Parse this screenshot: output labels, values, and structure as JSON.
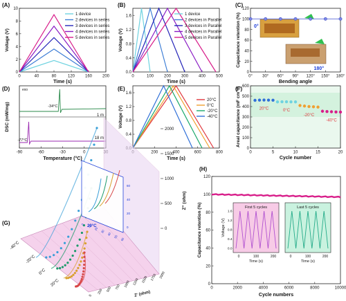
{
  "colors": {
    "c1": "#6fd3e0",
    "c2": "#3f7fd6",
    "c3": "#2424b8",
    "c4": "#8a1cc4",
    "c5": "#d81e8a",
    "t20": "#e0353b",
    "t0": "#f0a030",
    "tm20": "#1aa96a",
    "tm40": "#3070d8",
    "pinkArea": "#f7cbe6",
    "greenArea": "#c9f2df",
    "purple": "#b050d0",
    "teal": "#22aa88",
    "dscGreen": "#2a8a4a",
    "dscPurple": "#9a2ab0"
  },
  "chart_data": [
    {
      "panel": "(A)",
      "type": "line",
      "xlabel": "Time (s)",
      "ylabel": "Voltage (V)",
      "xlim": [
        0,
        200
      ],
      "ylim": [
        0,
        10
      ],
      "xticks": [
        "0",
        "40",
        "80",
        "120",
        "160",
        "200"
      ],
      "yticks": [
        "0",
        "2",
        "4",
        "6",
        "8",
        "10"
      ],
      "series": [
        {
          "name": "1 device",
          "color": "c1",
          "points": [
            [
              0,
              0
            ],
            [
              80,
              1.8
            ],
            [
              160,
              0
            ]
          ]
        },
        {
          "name": "2 devices in series",
          "color": "c2",
          "points": [
            [
              0,
              0
            ],
            [
              80,
              3.6
            ],
            [
              160,
              0
            ]
          ]
        },
        {
          "name": "3 devices in series",
          "color": "c3",
          "points": [
            [
              0,
              0
            ],
            [
              80,
              5.4
            ],
            [
              160,
              0
            ]
          ]
        },
        {
          "name": "4 devices in series",
          "color": "c4",
          "points": [
            [
              0,
              0
            ],
            [
              80,
              7.2
            ],
            [
              160,
              0
            ]
          ]
        },
        {
          "name": "5 devices in series",
          "color": "c5",
          "points": [
            [
              0,
              0
            ],
            [
              80,
              9.0
            ],
            [
              160,
              0
            ]
          ]
        }
      ]
    },
    {
      "panel": "(B)",
      "type": "line",
      "xlabel": "Time (s)",
      "ylabel": "Voltage (V)",
      "xlim": [
        0,
        500
      ],
      "ylim": [
        0,
        1.8
      ],
      "xticks": [
        "0",
        "100",
        "200",
        "300",
        "400",
        "500"
      ],
      "yticks": [
        "0.0",
        "0.4",
        "0.8",
        "1.2",
        "1.6"
      ],
      "series": [
        {
          "name": "1 device",
          "color": "c1",
          "points": [
            [
              0,
              0
            ],
            [
              50,
              1.8
            ],
            [
              100,
              0
            ]
          ]
        },
        {
          "name": "2 devices in Parallel",
          "color": "c2",
          "points": [
            [
              0,
              0
            ],
            [
              100,
              1.8
            ],
            [
              200,
              0
            ]
          ]
        },
        {
          "name": "3 devices in Parallel",
          "color": "c3",
          "points": [
            [
              0,
              0
            ],
            [
              150,
              1.8
            ],
            [
              300,
              0
            ]
          ]
        },
        {
          "name": "4 devices in Parallel",
          "color": "c4",
          "points": [
            [
              0,
              0
            ],
            [
              200,
              1.8
            ],
            [
              400,
              0
            ]
          ]
        },
        {
          "name": "5 devices in Parallel",
          "color": "c5",
          "points": [
            [
              0,
              0
            ],
            [
              250,
              1.8
            ],
            [
              480,
              0
            ]
          ]
        }
      ]
    },
    {
      "panel": "(C)",
      "type": "scatter",
      "xlabel": "Bending angle",
      "ylabel": "Capacitance retention (%)",
      "ylim": [
        0,
        120
      ],
      "categories": [
        "0°",
        "30°",
        "60°",
        "90°",
        "120°",
        "150°",
        "180°"
      ],
      "values": [
        100,
        100,
        100,
        100,
        100,
        100,
        100
      ],
      "yticks": [
        "0",
        "20",
        "40",
        "60",
        "80",
        "100",
        "120"
      ],
      "annotations": [
        "0°",
        "180°"
      ]
    },
    {
      "panel": "(D)",
      "type": "line",
      "xlabel": "Temperature (°C)",
      "ylabel": "DSC (mW/mg)",
      "xlim": [
        -90,
        30
      ],
      "xticks": [
        "-90",
        "-60",
        "-30",
        "0",
        "30"
      ],
      "corner_label": "exo",
      "series": [
        {
          "name": "1 m",
          "color": "dscGreen",
          "peak_x": -34,
          "peak_label": "-34°C"
        },
        {
          "name": "18 m",
          "color": "dscPurple",
          "peak_x": -77,
          "peak_label": "-77°C"
        }
      ]
    },
    {
      "panel": "(E)",
      "type": "line",
      "xlabel": "Time (s)",
      "ylabel": "Voltage (V)",
      "xlim": [
        0,
        900
      ],
      "ylim": [
        0,
        1.8
      ],
      "xticks": [
        "0",
        "200",
        "400",
        "600",
        "800"
      ],
      "yticks": [
        "0.0",
        "0.4",
        "0.8",
        "1.2",
        "1.6"
      ],
      "series": [
        {
          "name": "20°C",
          "color": "t20",
          "points": [
            [
              0,
              0
            ],
            [
              450,
              1.8
            ],
            [
              840,
              0
            ]
          ]
        },
        {
          "name": "0°C",
          "color": "t0",
          "points": [
            [
              0,
              0
            ],
            [
              420,
              1.8
            ],
            [
              800,
              0
            ]
          ]
        },
        {
          "name": "-20°C",
          "color": "tm20",
          "points": [
            [
              0,
              0
            ],
            [
              380,
              1.8
            ],
            [
              720,
              0
            ]
          ]
        },
        {
          "name": "-40°C",
          "color": "tm40",
          "points": [
            [
              0,
              0
            ],
            [
              320,
              1.8
            ],
            [
              620,
              0
            ]
          ]
        }
      ]
    },
    {
      "panel": "(F)",
      "type": "scatter",
      "xlabel": "Cycle number",
      "ylabel": "Areal capacitance (mF cm⁻²)",
      "xlim": [
        0,
        20
      ],
      "ylim": [
        0,
        600
      ],
      "xticks": [
        "0",
        "5",
        "10",
        "15",
        "20"
      ],
      "yticks": [
        "0",
        "100",
        "200",
        "300",
        "400",
        "500",
        "600"
      ],
      "series": [
        {
          "name": "20°C",
          "color": "tm40",
          "x": [
            1,
            2,
            3,
            4,
            5
          ],
          "y": [
            460,
            462,
            463,
            462,
            461
          ]
        },
        {
          "name": "0°C",
          "color": "c1",
          "x": [
            6,
            7,
            8,
            9,
            10
          ],
          "y": [
            445,
            446,
            446,
            445,
            445
          ]
        },
        {
          "name": "-20°C",
          "color": "t0",
          "x": [
            11,
            12,
            13,
            14,
            15
          ],
          "y": [
            410,
            405,
            400,
            398,
            395
          ]
        },
        {
          "name": "-40°C",
          "color": "c5",
          "x": [
            16,
            17,
            18,
            19,
            20
          ],
          "y": [
            355,
            352,
            350,
            348,
            347
          ]
        }
      ]
    },
    {
      "panel": "(G)",
      "type": "line",
      "xlabel": "Z' (ohm)",
      "ylabel": "Z'' (ohm)",
      "zticks": [
        "0",
        "500",
        "1000",
        "1500",
        "2000"
      ],
      "xticks": [
        "0",
        "250",
        "500",
        "750",
        "1000",
        "1250",
        "1500",
        "1750",
        "2000"
      ],
      "inset_xticks": [
        "0",
        "10",
        "20",
        "30",
        "40",
        "50",
        "60"
      ],
      "inset_yticks": [
        "0",
        "20",
        "40",
        "60"
      ],
      "series": [
        {
          "name": "-40°C",
          "color": "#3a9fd8"
        },
        {
          "name": "-20°C",
          "color": "#1c9a6a"
        },
        {
          "name": "0°C",
          "color": "#d8a030"
        },
        {
          "name": "20°C",
          "color": "#d84848"
        }
      ]
    },
    {
      "panel": "(H)",
      "type": "line",
      "xlabel": "Cycle numbers",
      "ylabel": "Capacitance retention (%)",
      "xlim": [
        0,
        10000
      ],
      "ylim": [
        0,
        120
      ],
      "xticks": [
        "0",
        "2000",
        "4000",
        "6000",
        "8000",
        "10000"
      ],
      "yticks": [
        "0",
        "20",
        "40",
        "60",
        "80",
        "100",
        "120"
      ],
      "series": [
        {
          "name": "",
          "color": "c5",
          "start": 100,
          "end": 97
        }
      ],
      "insets": [
        {
          "title": "First 5 cycles",
          "xlabel": "Time (s)",
          "ylabel": "Voltage (V)",
          "xticks": [
            "0",
            "100",
            "200"
          ],
          "yticks": [
            "0.0",
            "0.4",
            "0.8",
            "1.2",
            "1.6"
          ]
        },
        {
          "title": "Last 5 cycles",
          "xlabel": "Time (s)",
          "xticks": [
            "0",
            "100",
            "200"
          ]
        }
      ]
    }
  ]
}
